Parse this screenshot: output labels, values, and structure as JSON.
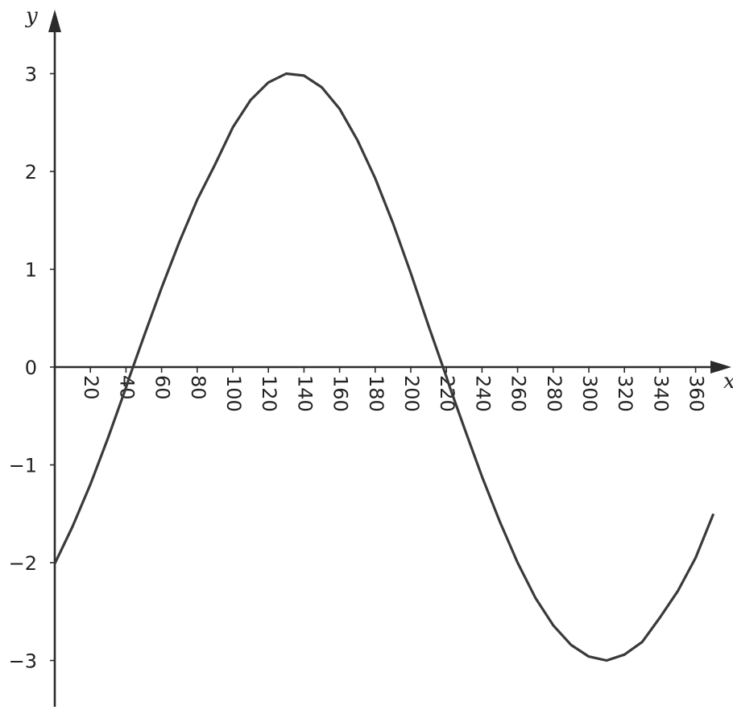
{
  "chart_data": {
    "type": "line",
    "xlabel": "x",
    "ylabel": "y",
    "xlim": [
      0,
      372
    ],
    "ylim": [
      -3.3,
      3.5
    ],
    "x_ticks": [
      20,
      40,
      60,
      80,
      100,
      120,
      140,
      160,
      180,
      200,
      220,
      240,
      260,
      280,
      300,
      320,
      340,
      360
    ],
    "y_ticks": [
      -3,
      -2,
      -1,
      0,
      1,
      2,
      3
    ],
    "x_tick_labels": [
      "20",
      "40",
      "60",
      "80",
      "100",
      "120",
      "140",
      "160",
      "180",
      "200",
      "220",
      "240",
      "260",
      "280",
      "300",
      "320",
      "340",
      "360"
    ],
    "y_tick_labels": [
      "−3",
      "−2",
      "−1",
      "0",
      "1",
      "2",
      "3"
    ],
    "grid": false,
    "series": [
      {
        "x": [
          0,
          10,
          20,
          30,
          40,
          42,
          50,
          60,
          70,
          80,
          90,
          100,
          110,
          120,
          130,
          140,
          150,
          160,
          170,
          180,
          190,
          200,
          210,
          220,
          222,
          230,
          240,
          250,
          260,
          270,
          280,
          290,
          300,
          310,
          320,
          330,
          340,
          350,
          360,
          370
        ],
        "y": [
          -2.01,
          -1.63,
          -1.2,
          -0.72,
          -0.21,
          -0.1,
          0.31,
          0.81,
          1.28,
          1.71,
          2.07,
          2.45,
          2.73,
          2.91,
          3.0,
          2.98,
          2.86,
          2.64,
          2.32,
          1.93,
          1.47,
          0.96,
          0.42,
          -0.1,
          -0.21,
          -0.62,
          -1.12,
          -1.58,
          -2.0,
          -2.36,
          -2.64,
          -2.84,
          -2.96,
          -3.0,
          -2.94,
          -2.81,
          -2.56,
          -2.29,
          -1.95,
          -1.5
        ]
      }
    ]
  }
}
